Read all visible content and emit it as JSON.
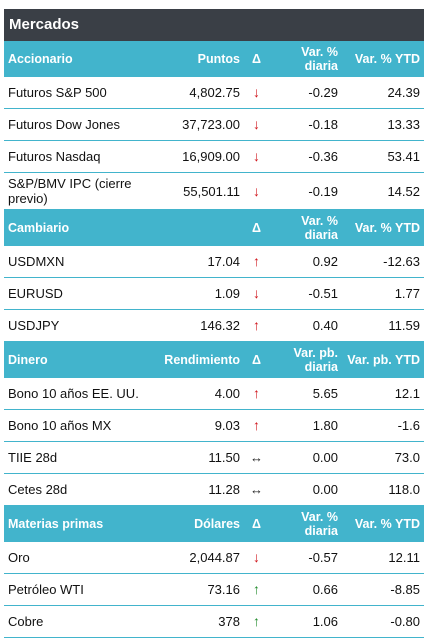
{
  "title": "Mercados",
  "sections": [
    {
      "header": [
        "Accionario",
        "Puntos",
        "Δ",
        "Var. % diaria",
        "Var. % YTD"
      ],
      "rows": [
        {
          "name": "Futuros S&P 500",
          "value": "4,802.75",
          "dir": "down",
          "daily": "-0.29",
          "ytd": "24.39"
        },
        {
          "name": "Futuros Dow Jones",
          "value": "37,723.00",
          "dir": "down",
          "daily": "-0.18",
          "ytd": "13.33"
        },
        {
          "name": "Futuros Nasdaq",
          "value": "16,909.00",
          "dir": "down",
          "daily": "-0.36",
          "ytd": "53.41"
        },
        {
          "name": "S&P/BMV IPC (cierre previo)",
          "value": "55,501.11",
          "dir": "down",
          "daily": "-0.19",
          "ytd": "14.52"
        }
      ]
    },
    {
      "header": [
        "Cambiario",
        "",
        "Δ",
        "Var. % diaria",
        "Var. % YTD"
      ],
      "rows": [
        {
          "name": "USDMXN",
          "value": "17.04",
          "dir": "up",
          "daily": "0.92",
          "ytd": "-12.63"
        },
        {
          "name": "EURUSD",
          "value": "1.09",
          "dir": "down",
          "daily": "-0.51",
          "ytd": "1.77"
        },
        {
          "name": "USDJPY",
          "value": "146.32",
          "dir": "up",
          "daily": "0.40",
          "ytd": "11.59"
        }
      ]
    },
    {
      "header": [
        "Dinero",
        "Rendimiento",
        "Δ",
        "Var. pb. diaria",
        "Var. pb. YTD"
      ],
      "rows": [
        {
          "name": "Bono 10 años EE. UU.",
          "value": "4.00",
          "dir": "up",
          "daily": "5.65",
          "ytd": "12.1"
        },
        {
          "name": "Bono 10 años MX",
          "value": "9.03",
          "dir": "up",
          "daily": "1.80",
          "ytd": "-1.6"
        },
        {
          "name": "TIIE 28d",
          "value": "11.50",
          "dir": "flat",
          "daily": "0.00",
          "ytd": "73.0"
        },
        {
          "name": "Cetes 28d",
          "value": "11.28",
          "dir": "flat",
          "daily": "0.00",
          "ytd": "118.0"
        }
      ]
    },
    {
      "header": [
        "Materias primas",
        "Dólares",
        "Δ",
        "Var. % diaria",
        "Var. % YTD"
      ],
      "rows": [
        {
          "name": "Oro",
          "value": "2,044.87",
          "dir": "down",
          "daily": "-0.57",
          "ytd": "12.11"
        },
        {
          "name": "Petróleo WTI",
          "value": "73.16",
          "dir": "up-green",
          "daily": "0.66",
          "ytd": "-8.85"
        },
        {
          "name": "Cobre",
          "value": "378",
          "dir": "up-green",
          "daily": "1.06",
          "ytd": "-0.80"
        }
      ]
    }
  ],
  "icons": {
    "down": "arrow-down-icon",
    "up": "arrow-up-icon",
    "flat": "arrow-left-right-icon"
  },
  "colors": {
    "header_bg": "#42b4cc",
    "title_bg": "#3a3f46",
    "down": "#d0141b",
    "up": "#d0141b",
    "up_green": "#1f8a2a"
  }
}
